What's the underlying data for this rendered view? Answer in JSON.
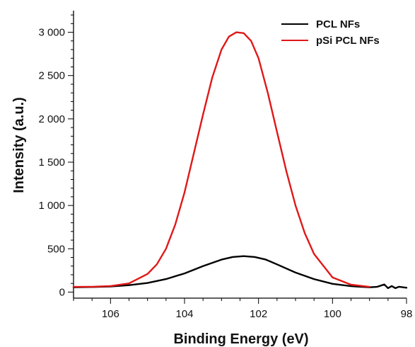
{
  "chart_data": {
    "type": "line",
    "title": "",
    "xlabel": "Binding Energy (eV)",
    "ylabel": "Intensity (a.u.)",
    "xlim": [
      107,
      98
    ],
    "ylim": [
      -70,
      3250
    ],
    "x_reversed": true,
    "xticks": [
      106,
      104,
      102,
      100,
      98
    ],
    "xtick_labels": [
      "106",
      "104",
      "102",
      "100",
      "98"
    ],
    "yticks": [
      0,
      500,
      1000,
      1500,
      2000,
      2500,
      3000
    ],
    "ytick_labels": [
      "0",
      "500",
      "1 000",
      "1 500",
      "2 000",
      "2 500",
      "3 000"
    ],
    "grid": false,
    "legend_position": "top-right",
    "series": [
      {
        "name": "PCL NFs",
        "color": "#000000",
        "x": [
          107.0,
          106.5,
          106.0,
          105.5,
          105.0,
          104.5,
          104.0,
          103.5,
          103.0,
          102.7,
          102.4,
          102.1,
          101.8,
          101.5,
          101.0,
          100.5,
          100.0,
          99.5,
          99.0,
          98.8,
          98.6,
          98.5,
          98.4,
          98.3,
          98.2,
          98.0
        ],
        "y": [
          55,
          58,
          65,
          80,
          105,
          150,
          215,
          300,
          375,
          405,
          415,
          405,
          375,
          320,
          225,
          150,
          95,
          68,
          55,
          60,
          88,
          45,
          70,
          45,
          62,
          50
        ]
      },
      {
        "name": "pSi PCL NFs",
        "color": "#e01818",
        "x": [
          107.0,
          106.5,
          106.0,
          105.5,
          105.0,
          104.75,
          104.5,
          104.25,
          104.0,
          103.75,
          103.5,
          103.25,
          103.0,
          102.8,
          102.6,
          102.4,
          102.2,
          102.0,
          101.75,
          101.5,
          101.25,
          101.0,
          100.75,
          100.5,
          100.0,
          99.5,
          99.0
        ],
        "y": [
          60,
          62,
          70,
          100,
          210,
          320,
          500,
          780,
          1150,
          1600,
          2050,
          2480,
          2800,
          2950,
          3000,
          2990,
          2900,
          2700,
          2300,
          1850,
          1400,
          1000,
          680,
          440,
          170,
          85,
          60
        ]
      }
    ]
  }
}
